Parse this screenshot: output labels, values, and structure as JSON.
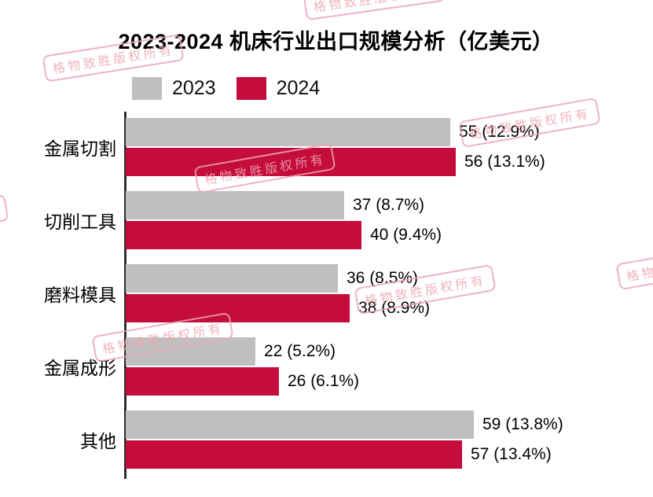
{
  "title": "2023-2024 机床行业出口规模分析（亿美元）",
  "legend": [
    {
      "label": "2023",
      "color": "#bfbfbf"
    },
    {
      "label": "2024",
      "color": "#c40d3d"
    }
  ],
  "watermark": {
    "text": "格物致胜版权所有",
    "color": "#eda6b2"
  },
  "chart_data": {
    "type": "bar",
    "orientation": "horizontal",
    "title": "2023-2024 机床行业出口规模分析（亿美元）",
    "unit": "亿美元",
    "categories": [
      "金属切割",
      "切削工具",
      "磨料模具",
      "金属成形",
      "其他"
    ],
    "series": [
      {
        "name": "2023",
        "color": "#bfbfbf",
        "values": [
          55,
          37,
          36,
          22,
          59
        ],
        "data_labels": [
          "55 (12.9%)",
          "37 (8.7%)",
          "36 (8.5%)",
          "22 (5.2%)",
          "59 (13.8%)"
        ]
      },
      {
        "name": "2024",
        "color": "#c40d3d",
        "values": [
          56,
          40,
          38,
          26,
          57
        ],
        "data_labels": [
          "56 (13.1%)",
          "40 (9.4%)",
          "38 (8.9%)",
          "26 (6.1%)",
          "57 (13.4%)"
        ]
      }
    ],
    "xlim": [
      0,
      89
    ],
    "legend_position": "top",
    "grid": false
  }
}
